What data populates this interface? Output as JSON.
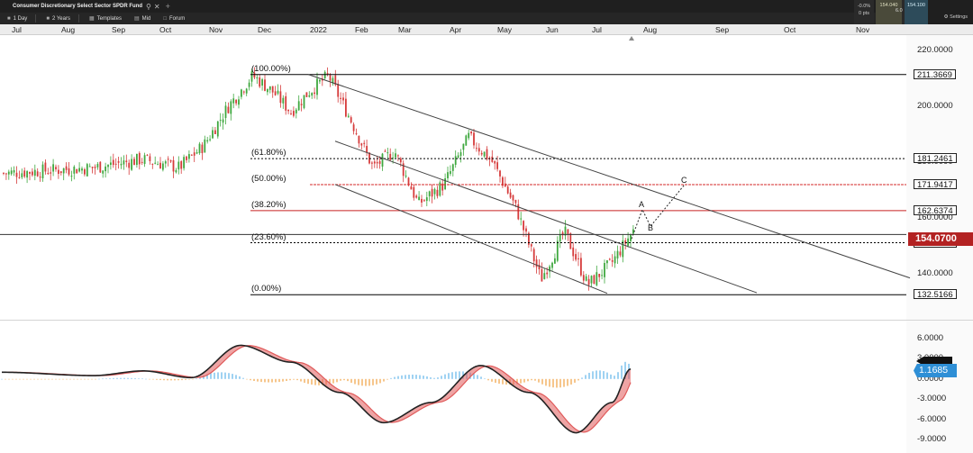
{
  "window": {
    "title": "Consumer Discretionary Select Sector SPDR Fund",
    "search_icon": "search-icon",
    "close_icon": "close-icon",
    "new_tab_symbol": "+"
  },
  "toolbar": {
    "interval": "1 Day",
    "range": "2 Years",
    "templates": "Templates",
    "price_type": "Mid",
    "forum": "Forum",
    "settings": "Settings"
  },
  "quote": {
    "change_pct": "-0.0%",
    "change_pts": "0 pts",
    "sell": "154.040",
    "buy": "154.100",
    "spread": "6.0"
  },
  "chart_data": {
    "type": "candlestick",
    "x_axis": {
      "labels": [
        "Jul",
        "Aug",
        "Sep",
        "Oct",
        "Nov",
        "Dec",
        "2022",
        "Feb",
        "Mar",
        "Apr",
        "May",
        "Jun",
        "Jul",
        "Aug",
        "Sep",
        "Oct",
        "Nov"
      ]
    },
    "price_axis": {
      "ticks": [
        "220.0000",
        "200.0000",
        "180.0000",
        "160.0000",
        "140.0000"
      ],
      "range": [
        126,
        224
      ]
    },
    "price_series": [
      {
        "month": "Jul",
        "value": 176
      },
      {
        "month": "Aug",
        "value": 178
      },
      {
        "month": "Sep",
        "value": 181
      },
      {
        "month": "Oct",
        "value": 178
      },
      {
        "month": "Oct",
        "value": 186
      },
      {
        "month": "Nov",
        "value": 200
      },
      {
        "month": "Nov",
        "value": 211
      },
      {
        "month": "Dec",
        "value": 205
      },
      {
        "month": "Dec",
        "value": 198
      },
      {
        "month": "Dec",
        "value": 205
      },
      {
        "month": "2022",
        "value": 211
      },
      {
        "month": "2022",
        "value": 195
      },
      {
        "month": "Feb",
        "value": 178
      },
      {
        "month": "Feb",
        "value": 184
      },
      {
        "month": "Mar",
        "value": 165
      },
      {
        "month": "Mar",
        "value": 172
      },
      {
        "month": "Apr",
        "value": 189
      },
      {
        "month": "Apr",
        "value": 180
      },
      {
        "month": "May",
        "value": 163
      },
      {
        "month": "May",
        "value": 138
      },
      {
        "month": "Jun",
        "value": 155
      },
      {
        "month": "Jun",
        "value": 136
      },
      {
        "month": "Jul",
        "value": 144
      },
      {
        "month": "Jul",
        "value": 156
      }
    ],
    "fibonacci": [
      {
        "label": "(100.00%)",
        "price": "211.3669",
        "color": "#000000"
      },
      {
        "label": "(61.80%)",
        "price": "181.2461",
        "color": "#000000"
      },
      {
        "label": "(50.00%)",
        "price": "171.9417",
        "color": "#d62828"
      },
      {
        "label": "(38.20%)",
        "price": "162.6374",
        "color": "#c82222"
      },
      {
        "label": "(23.60%)",
        "price": "151.1253",
        "color": "#000000"
      },
      {
        "label": "(0.00%)",
        "price": "132.5166",
        "color": "#000000"
      }
    ],
    "current_price": "154.0700",
    "projection_labels": [
      "A",
      "B",
      "C"
    ],
    "macd": {
      "ticks": [
        "6.0000",
        "3.0000",
        "0.0000",
        "-3.0000",
        "-6.0000",
        "-9.0000"
      ],
      "range": [
        -9,
        6
      ],
      "current_value": "1.1685",
      "series": [
        {
          "month": "Jul",
          "value": 1.0
        },
        {
          "month": "Aug",
          "value": 0.5
        },
        {
          "month": "Sep",
          "value": 1.2
        },
        {
          "month": "Oct",
          "value": 0.2
        },
        {
          "month": "Nov",
          "value": 5.0
        },
        {
          "month": "Dec",
          "value": 2.5
        },
        {
          "month": "2022",
          "value": -2.0
        },
        {
          "month": "Feb",
          "value": -6.5
        },
        {
          "month": "Mar",
          "value": -3.5
        },
        {
          "month": "Apr",
          "value": 2.0
        },
        {
          "month": "May",
          "value": -2.0
        },
        {
          "month": "Jun",
          "value": -8.0
        },
        {
          "month": "Jul",
          "value": -3.5
        },
        {
          "month": "Jul",
          "value": 1.5
        }
      ]
    },
    "colors": {
      "up": "#3fa83f",
      "down": "#d63b3b",
      "macd_line": "#222222",
      "signal_line": "#e05a5a",
      "histogram_pos": "#5fb3ea",
      "histogram_neg": "#f0a040"
    }
  }
}
